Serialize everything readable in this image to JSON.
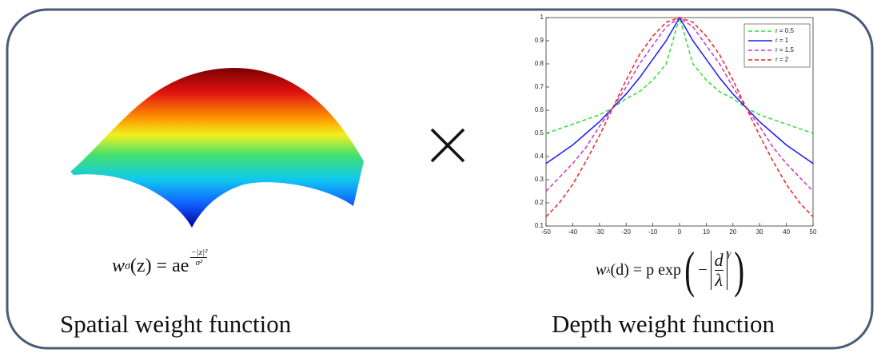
{
  "chart_data": {
    "type": "line",
    "x": [
      -50,
      -45,
      -40,
      -35,
      -30,
      -25,
      -20,
      -15,
      -10,
      -5,
      0,
      5,
      10,
      15,
      20,
      25,
      30,
      35,
      40,
      45,
      50
    ],
    "series": [
      {
        "name": "r = 0.5",
        "color": "#33dd33",
        "style": "dashed",
        "values": [
          0.5,
          0.52,
          0.54,
          0.56,
          0.58,
          0.61,
          0.65,
          0.68,
          0.73,
          0.8,
          1,
          0.8,
          0.73,
          0.68,
          0.65,
          0.61,
          0.58,
          0.56,
          0.54,
          0.52,
          0.5
        ]
      },
      {
        "name": "r = 1",
        "color": "#1a1aff",
        "style": "solid",
        "values": [
          0.37,
          0.41,
          0.45,
          0.5,
          0.55,
          0.61,
          0.67,
          0.74,
          0.82,
          0.9,
          1,
          0.9,
          0.82,
          0.74,
          0.67,
          0.61,
          0.55,
          0.5,
          0.45,
          0.41,
          0.37
        ]
      },
      {
        "name": "r = 1.5",
        "color": "#cc33cc",
        "style": "dashed",
        "values": [
          0.25,
          0.31,
          0.37,
          0.44,
          0.53,
          0.61,
          0.7,
          0.8,
          0.88,
          0.96,
          1,
          0.96,
          0.88,
          0.8,
          0.7,
          0.61,
          0.53,
          0.44,
          0.37,
          0.31,
          0.25
        ]
      },
      {
        "name": "r = 2",
        "color": "#ee2222",
        "style": "dashed",
        "values": [
          0.14,
          0.2,
          0.28,
          0.38,
          0.49,
          0.61,
          0.73,
          0.84,
          0.92,
          0.98,
          1,
          0.98,
          0.92,
          0.84,
          0.73,
          0.61,
          0.49,
          0.38,
          0.28,
          0.2,
          0.14
        ]
      }
    ],
    "xlim": [
      -50,
      50
    ],
    "xticks": [
      -50,
      -40,
      -30,
      -20,
      -10,
      0,
      10,
      20,
      30,
      40,
      50
    ],
    "ylim": [
      0.1,
      1
    ],
    "yticks": [
      0.1,
      0.2,
      0.3,
      0.4,
      0.5,
      0.6,
      0.7,
      0.8,
      0.9,
      1
    ],
    "legend": "upper right"
  },
  "spatial": {
    "formula": {
      "w": "w",
      "sub": "σ",
      "mid": "(z) = ae",
      "exp_num": "−|z|²",
      "exp_den": "σ²"
    },
    "caption": "Spatial weight function"
  },
  "depth": {
    "formula": {
      "w": "w",
      "sub": "λ",
      "mid": "(d) = p exp",
      "open": "(",
      "minus": "−",
      "num": "d",
      "den": "λ",
      "power": "γ",
      "close": ")"
    },
    "caption": "Depth weight function"
  }
}
